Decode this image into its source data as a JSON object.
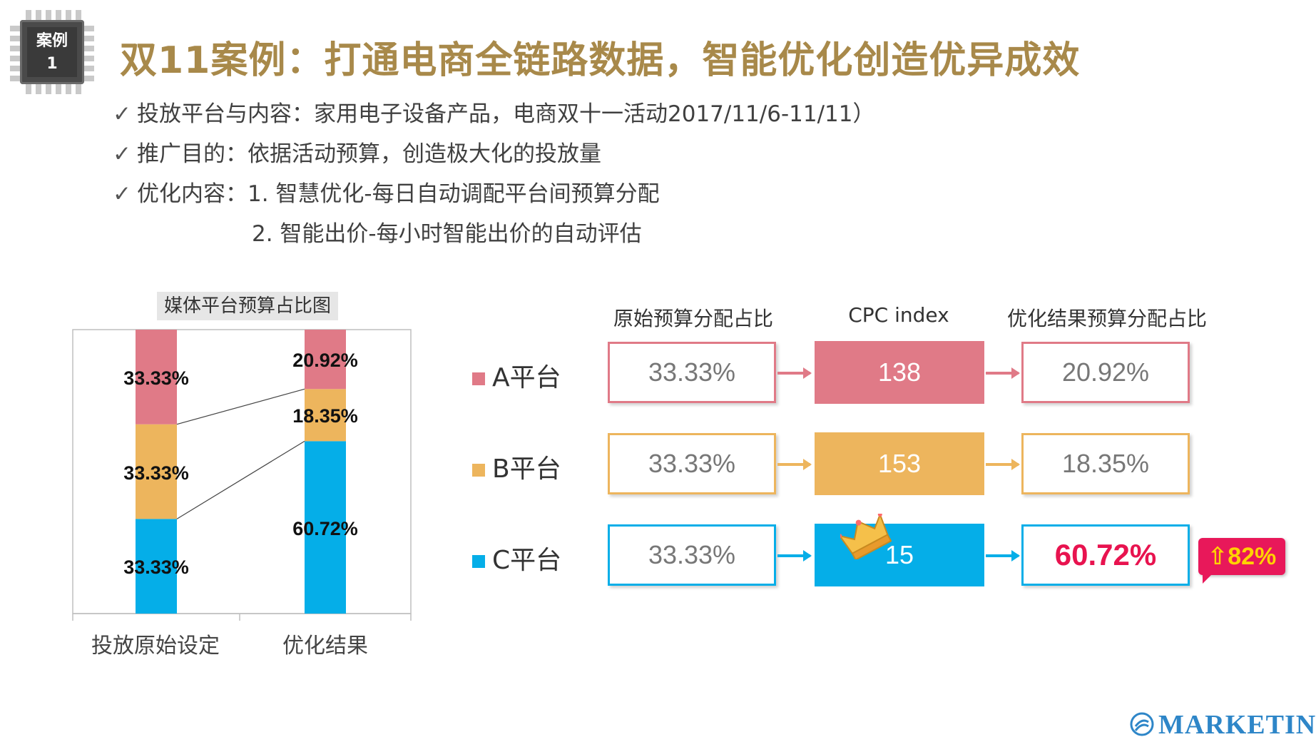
{
  "badge": {
    "line1": "案例",
    "line2": "1"
  },
  "title": "双11案例：打通电商全链路数据，智能优化创造优异成效",
  "bullets": [
    "投放平台与内容：家用电子设备产品，电商双十一活动2017/11/6-11/11）",
    "推广目的：依据活动预算，创造极大化的投放量",
    "优化内容：1. 智慧优化-每日自动调配平台间预算分配"
  ],
  "bullet_continuation": "2. 智能出价-每小时智能出价的自动评估",
  "check_glyph": "✓",
  "chart_data": {
    "type": "bar",
    "stacked": true,
    "title": "媒体平台预算占比图",
    "categories": [
      "投放原始设定",
      "优化结果"
    ],
    "series": [
      {
        "key": "C",
        "color": "#05aee8",
        "values": [
          33.33,
          60.72
        ]
      },
      {
        "key": "B",
        "color": "#edb55d",
        "values": [
          33.33,
          18.35
        ]
      },
      {
        "key": "A",
        "color": "#e07a87",
        "values": [
          33.33,
          20.92
        ]
      }
    ],
    "labels": {
      "original": [
        "33.33%",
        "33.33%",
        "33.33%"
      ],
      "optimized": [
        "20.92%",
        "18.35%",
        "60.72%"
      ]
    },
    "ylim": [
      0,
      100
    ]
  },
  "flow": {
    "headers": [
      "原始预算分配占比",
      "CPC index",
      "优化结果预算分配占比"
    ],
    "rows": [
      {
        "platform": "A平台",
        "color": "#e07a87",
        "original": "33.33%",
        "cpc": "138",
        "result": "20.92%"
      },
      {
        "platform": "B平台",
        "color": "#edb55d",
        "original": "33.33%",
        "cpc": "153",
        "result": "18.35%"
      },
      {
        "platform": "C平台",
        "color": "#05aee8",
        "original": "33.33%",
        "cpc": "15",
        "result": "60.72%"
      }
    ],
    "increase_badge": "⇧82%"
  },
  "logo": "MARKETIN"
}
